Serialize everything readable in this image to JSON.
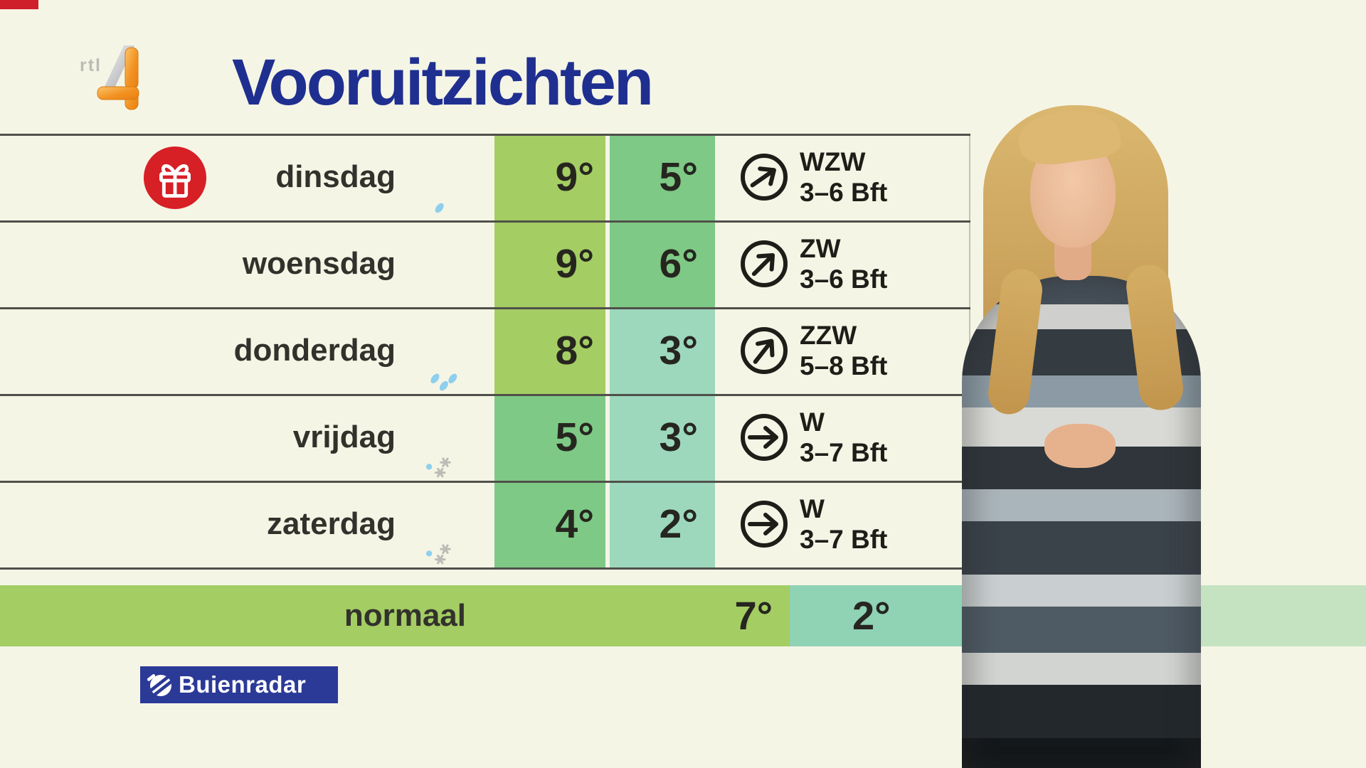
{
  "channel": {
    "logo_text": "rtl",
    "logo_number": "4"
  },
  "header": {
    "title": "Vooruitzichten"
  },
  "forecast": {
    "rows": [
      {
        "day": "dinsdag",
        "badge": "gift-icon",
        "icon": "cloud-sun-light-rain-icon",
        "max": "9°",
        "min": "5°",
        "max_bg": "#a4cd63",
        "min_bg": "#7dc985",
        "wind": {
          "dir": "WZW",
          "force": "3–6 Bft",
          "arrow_deg": -35
        }
      },
      {
        "day": "woensdag",
        "badge": null,
        "icon": "cloud-sun-icon",
        "max": "9°",
        "min": "6°",
        "max_bg": "#a4cd63",
        "min_bg": "#7dc985",
        "wind": {
          "dir": "ZW",
          "force": "3–6 Bft",
          "arrow_deg": -45
        }
      },
      {
        "day": "donderdag",
        "badge": null,
        "icon": "cloud-rain-icon",
        "max": "8°",
        "min": "3°",
        "max_bg": "#a4cd63",
        "min_bg": "#9dd8bc",
        "wind": {
          "dir": "ZZW",
          "force": "5–8 Bft",
          "arrow_deg": -52
        }
      },
      {
        "day": "vrijdag",
        "badge": null,
        "icon": "cloud-sun-sleet-icon",
        "max": "5°",
        "min": "3°",
        "max_bg": "#7dc985",
        "min_bg": "#9dd8bc",
        "wind": {
          "dir": "W",
          "force": "3–7 Bft",
          "arrow_deg": 0
        }
      },
      {
        "day": "zaterdag",
        "badge": null,
        "icon": "cloud-sun-sleet-icon",
        "max": "4°",
        "min": "2°",
        "max_bg": "#7dc985",
        "min_bg": "#9dd8bc",
        "wind": {
          "dir": "W",
          "force": "3–7 Bft",
          "arrow_deg": 0
        }
      }
    ],
    "normal": {
      "label": "normaal",
      "max": "7°",
      "min": "2°",
      "max_bg": "#a4cd63",
      "min_bg": "#8fd2b4",
      "tail_bg": "#c5e3c0"
    }
  },
  "footer": {
    "brand": "Buienradar"
  },
  "colors": {
    "background": "#f5f5e6",
    "row_line": "#50504a",
    "title_blue": "#1f2f90",
    "brand_blue": "#2b3a97",
    "gift_red": "#d71f26",
    "day_text": "#32322c",
    "temp_text": "#26261f",
    "wind_text": "#1e1e19",
    "cloud_gray": "#9b9b95",
    "sun_yellow": "#f3bc23",
    "sun_orange": "#f0a028",
    "rain_blue": "#8ecfee",
    "snow_gray": "#bcbcb6",
    "corner_red": "#cf1f2a"
  }
}
